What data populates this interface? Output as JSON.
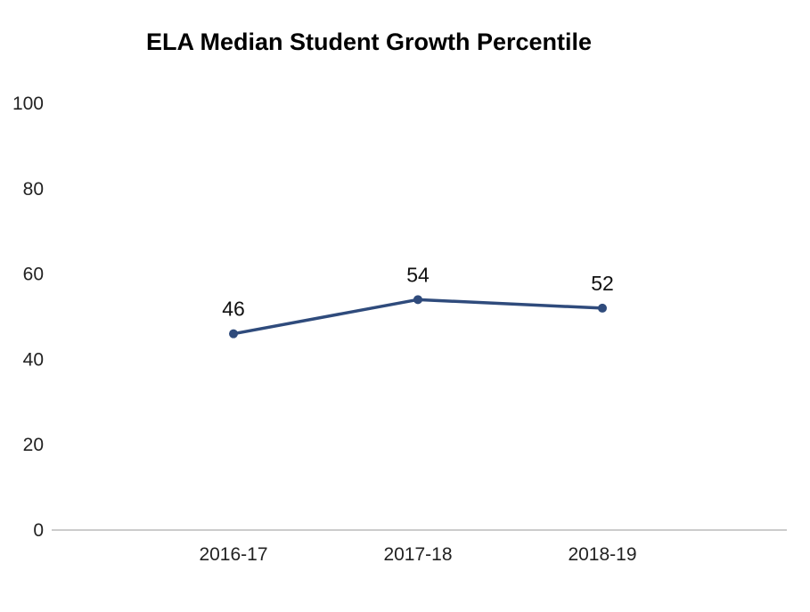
{
  "chart_data": {
    "type": "line",
    "title": "ELA Median Student Growth Percentile",
    "xlabel": "",
    "ylabel": "",
    "categories": [
      "2016-17",
      "2017-18",
      "2018-19"
    ],
    "series": [
      {
        "values": [
          46,
          54,
          52
        ]
      }
    ],
    "data_labels": [
      "46",
      "54",
      "52"
    ],
    "ylim": [
      0,
      100
    ],
    "y_ticks": [
      0,
      20,
      40,
      60,
      80,
      100
    ],
    "y_tick_labels": [
      "0",
      "20",
      "40",
      "60",
      "80",
      "100"
    ],
    "grid": false,
    "legend": "none",
    "colors": {
      "line": "#2f4b7c",
      "axis": "#cccccc"
    }
  }
}
